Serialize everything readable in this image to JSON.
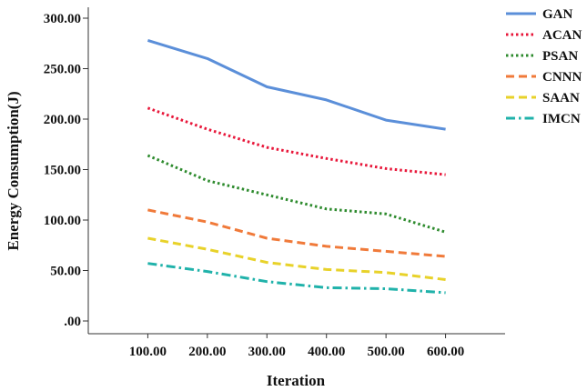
{
  "chart_data": {
    "type": "line",
    "title": "",
    "xlabel": "Iteration",
    "ylabel": "Energy Consumption(J)",
    "x": [
      100,
      200,
      300,
      400,
      500,
      600
    ],
    "x_tick_labels": [
      "100.00",
      "200.00",
      "300.00",
      "400.00",
      "500.00",
      "600.00"
    ],
    "y_ticks": [
      0,
      50,
      100,
      150,
      200,
      250,
      300
    ],
    "y_tick_labels": [
      ".00",
      "50.00",
      "100.00",
      "150.00",
      "200.00",
      "250.00",
      "300.00"
    ],
    "ylim": [
      0,
      300
    ],
    "xlim": [
      0,
      700
    ],
    "grid": false,
    "legend_position": "top-right",
    "series": [
      {
        "name": "GAN",
        "color": "#5b8fd9",
        "dash": "solid",
        "values": [
          278,
          260,
          232,
          219,
          199,
          190
        ]
      },
      {
        "name": "ACAN",
        "color": "#e8173a",
        "dash": "dotted",
        "values": [
          211,
          190,
          172,
          161,
          151,
          145
        ]
      },
      {
        "name": "PSAN",
        "color": "#2e8b2e",
        "dash": "dotted",
        "values": [
          164,
          139,
          125,
          111,
          106,
          88
        ]
      },
      {
        "name": "CNNN",
        "color": "#f07a3a",
        "dash": "dashed",
        "values": [
          110,
          98,
          82,
          74,
          69,
          64
        ]
      },
      {
        "name": "SAAN",
        "color": "#e8d22a",
        "dash": "dashed",
        "values": [
          82,
          71,
          58,
          51,
          48,
          41
        ]
      },
      {
        "name": "IMCN",
        "color": "#20b2aa",
        "dash": "dashdot",
        "values": [
          57,
          49,
          39,
          33,
          32,
          28
        ]
      }
    ]
  }
}
